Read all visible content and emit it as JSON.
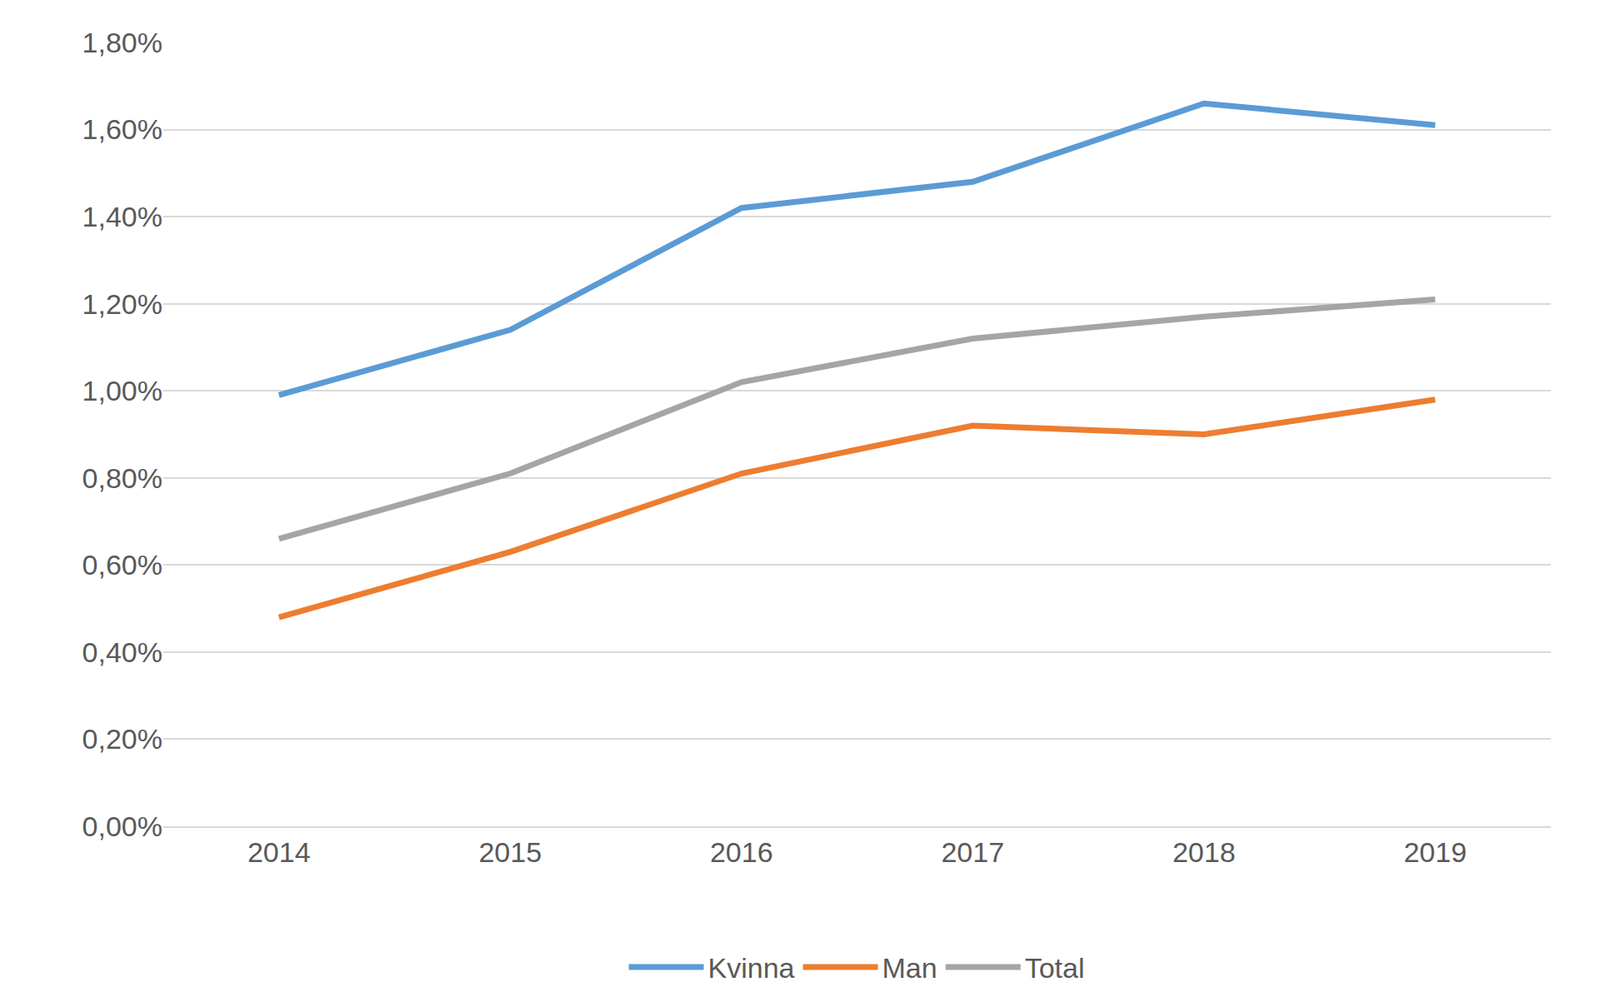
{
  "chart_data": {
    "type": "line",
    "categories": [
      "2014",
      "2015",
      "2016",
      "2017",
      "2018",
      "2019"
    ],
    "series": [
      {
        "name": "Kvinna",
        "color": "#5b9bd5",
        "values": [
          0.99,
          1.14,
          1.42,
          1.48,
          1.66,
          1.61
        ]
      },
      {
        "name": "Man",
        "color": "#ed7d31",
        "values": [
          0.48,
          0.63,
          0.81,
          0.92,
          0.9,
          0.98
        ]
      },
      {
        "name": "Total",
        "color": "#a5a5a5",
        "values": [
          0.66,
          0.81,
          1.02,
          1.12,
          1.17,
          1.21
        ]
      }
    ],
    "ylim": [
      0,
      1.8
    ],
    "yticks": [
      {
        "value": 0,
        "label": "0,00%"
      },
      {
        "value": 0.2,
        "label": "0,20%"
      },
      {
        "value": 0.4,
        "label": "0,40%"
      },
      {
        "value": 0.6,
        "label": "0,60%"
      },
      {
        "value": 0.8,
        "label": "0,80%"
      },
      {
        "value": 1.0,
        "label": "1,00%"
      },
      {
        "value": 1.2,
        "label": "1,20%"
      },
      {
        "value": 1.4,
        "label": "1,40%"
      },
      {
        "value": 1.6,
        "label": "1,60%"
      },
      {
        "value": 1.8,
        "label": "1,80%"
      }
    ],
    "grid": true,
    "legend": "bottom"
  }
}
